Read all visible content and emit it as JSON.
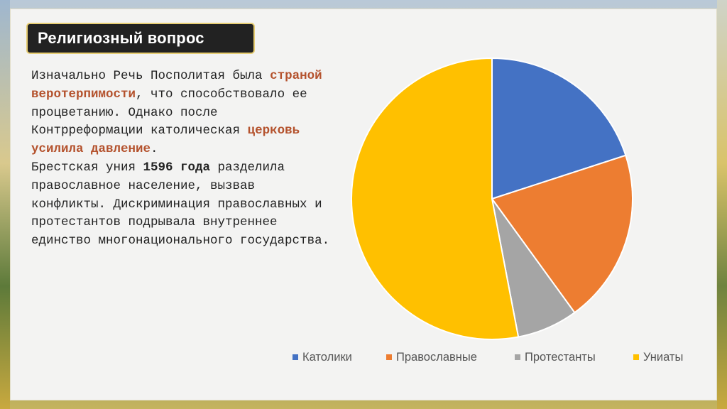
{
  "slide": {
    "title": "Религиозный вопрос",
    "paragraph": {
      "t1": "Изначально Речь Посполитая была ",
      "h1": "страной веротерпимости",
      "t2": ", что способствовало ее процветанию. Однако после Контрреформации католическая ",
      "h2": "церковь усилила давление",
      "t3": ".",
      "t4": "Брестская уния ",
      "b1": "1596 года",
      "t5": " разделила православное население, вызвав конфликты. Дискриминация православных и протестантов подрывала внутреннее единство многонационального государства."
    }
  },
  "chart_data": {
    "type": "pie",
    "title": "",
    "categories": [
      "Католики",
      "Православные",
      "Протестанты",
      "Униаты"
    ],
    "values": [
      20,
      20,
      7,
      53
    ],
    "colors": [
      "#4472c4",
      "#ed7d31",
      "#a5a5a5",
      "#ffc000"
    ],
    "start_angle_deg": 0,
    "direction": "clockwise",
    "legend": "bottom"
  }
}
